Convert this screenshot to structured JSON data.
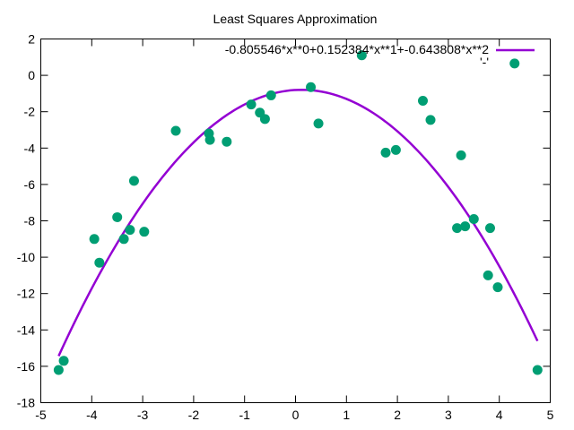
{
  "chart_data": {
    "type": "scatter",
    "title": "Least Squares Approximation",
    "xlabel": "",
    "ylabel": "",
    "xlim": [
      -5,
      5
    ],
    "ylim": [
      -18,
      2
    ],
    "x_ticks": [
      "-5",
      "-4",
      "-3",
      "-2",
      "-1",
      "0",
      "1",
      "2",
      "3",
      "4",
      "5"
    ],
    "y_ticks": [
      "-18",
      "-16",
      "-14",
      "-12",
      "-10",
      "-8",
      "-6",
      "-4",
      "-2",
      "0",
      "2"
    ],
    "grid": false,
    "legend": "top-right",
    "series": [
      {
        "name": "-0.805546*x**0+0.152384*x**1+-0.643808*x**2",
        "kind": "line",
        "color": "#9400d3",
        "coefficients": [
          -0.805546,
          0.152384,
          -0.643808
        ],
        "x_range": [
          -4.65,
          4.75
        ]
      },
      {
        "name": "'-'",
        "kind": "points",
        "color": "#009e73",
        "points": [
          [
            -4.65,
            -16.2
          ],
          [
            -4.55,
            -15.7
          ],
          [
            -3.95,
            -9.0
          ],
          [
            -3.85,
            -10.3
          ],
          [
            -3.5,
            -7.8
          ],
          [
            -3.37,
            -9.0
          ],
          [
            -3.25,
            -8.5
          ],
          [
            -3.17,
            -5.8
          ],
          [
            -2.97,
            -8.6
          ],
          [
            -2.35,
            -3.05
          ],
          [
            -1.7,
            -3.2
          ],
          [
            -1.68,
            -3.55
          ],
          [
            -1.35,
            -3.65
          ],
          [
            -0.87,
            -1.6
          ],
          [
            -0.7,
            -2.05
          ],
          [
            -0.6,
            -2.4
          ],
          [
            -0.48,
            -1.1
          ],
          [
            0.3,
            -0.65
          ],
          [
            0.45,
            -2.65
          ],
          [
            1.3,
            1.1
          ],
          [
            1.77,
            -4.25
          ],
          [
            1.97,
            -4.1
          ],
          [
            2.5,
            -1.4
          ],
          [
            2.65,
            -2.45
          ],
          [
            3.17,
            -8.4
          ],
          [
            3.25,
            -4.4
          ],
          [
            3.33,
            -8.3
          ],
          [
            3.5,
            -7.9
          ],
          [
            3.78,
            -11.0
          ],
          [
            3.82,
            -8.4
          ],
          [
            3.97,
            -11.65
          ],
          [
            4.3,
            0.65
          ],
          [
            4.75,
            -16.2
          ]
        ]
      }
    ]
  }
}
